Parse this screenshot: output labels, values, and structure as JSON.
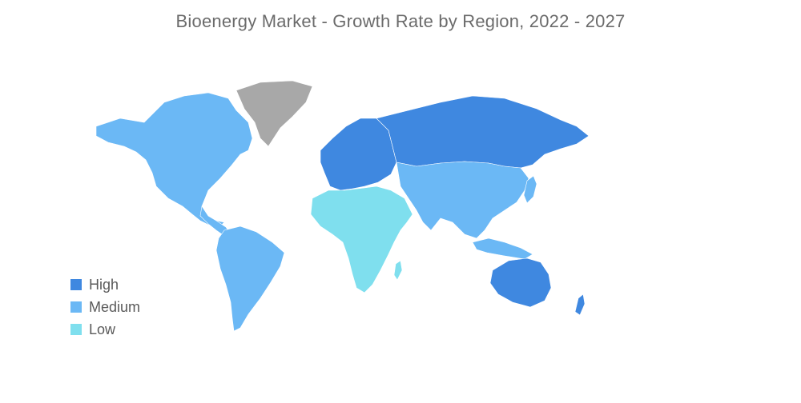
{
  "title": "Bioenergy Market - Growth Rate by Region, 2022 - 2027",
  "colors": {
    "high": "#3f88e0",
    "medium": "#6bb8f5",
    "low": "#7fdfee",
    "no_data": "#a8a8a8"
  },
  "legend": [
    {
      "label": "High",
      "color": "#3f88e0"
    },
    {
      "label": "Medium",
      "color": "#6bb8f5"
    },
    {
      "label": "Low",
      "color": "#7fdfee"
    }
  ],
  "regions": {
    "north_america": "Medium",
    "south_america": "Medium",
    "europe": "High",
    "russia": "High",
    "middle_east_africa": "Low",
    "asia_pacific": "Medium",
    "australia_nz": "High",
    "greenland": "No data"
  }
}
